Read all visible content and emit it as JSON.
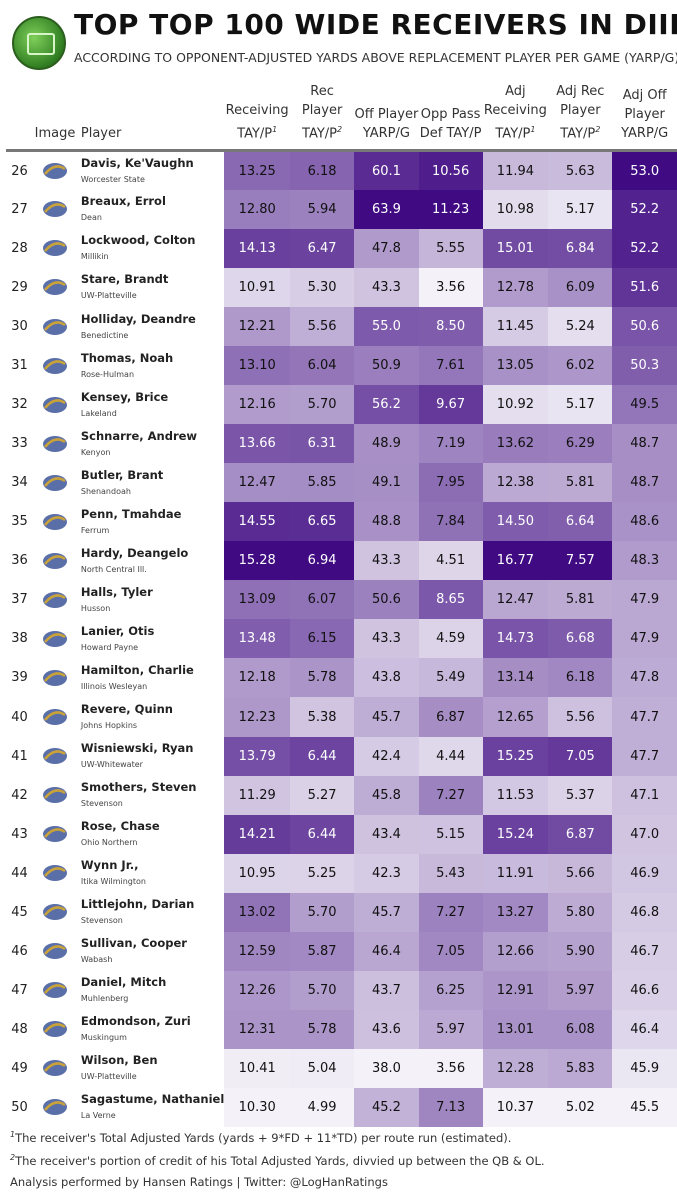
{
  "title": "TOP TOP 100 WIDE RECEIVERS IN DIII",
  "subtitle": "ACCORDING TO OPPONENT-ADJUSTED YARDS ABOVE REPLACEMENT PLAYER PER GAME (YARP/G)",
  "colors": {
    "low": "#f4f2f8",
    "high": "#3f0a82",
    "text_dark": "#111111",
    "text_light": "#ffffff",
    "header_rule": "#777777"
  },
  "headers": {
    "image": "Image",
    "player": "Player",
    "receiving_tay": [
      "Receiving",
      "TAY/P",
      "1"
    ],
    "rec_player_tay": [
      "Rec",
      "Player",
      "TAY/P",
      "2"
    ],
    "off_player_yarp": [
      "Off Player",
      "YARP/G"
    ],
    "opp_pass_def": [
      "Opp Pass",
      "Def TAY/P"
    ],
    "adj_receiving_tay": [
      "Adj",
      "Receiving",
      "TAY/P",
      "1"
    ],
    "adj_rec_player_tay": [
      "Adj Rec",
      "Player",
      "TAY/P",
      "2"
    ],
    "adj_off_player_yarp": [
      "Adj Off",
      "Player",
      "YARP/G"
    ]
  },
  "chart_data": {
    "type": "table",
    "columns": [
      "Rank",
      "Image",
      "Player",
      "School",
      "Receiving TAY/P",
      "Rec Player TAY/P",
      "Off Player YARP/G",
      "Opp Pass Def TAY/P",
      "Adj Receiving TAY/P",
      "Adj Rec Player TAY/P",
      "Adj Off Player YARP/G"
    ],
    "rows": [
      {
        "rank": "26",
        "player": "Davis, Ke'Vaughn",
        "school": "Worcester State",
        "icon": "lancer-mascot-icon",
        "values": [
          "13.25",
          "6.18",
          "60.1",
          "10.56",
          "11.94",
          "5.63",
          "53.0"
        ]
      },
      {
        "rank": "27",
        "player": "Breaux, Errol",
        "school": "Dean",
        "icon": "bulldog-mascot-icon",
        "values": [
          "12.80",
          "5.94",
          "63.9",
          "11.23",
          "10.98",
          "5.17",
          "52.2"
        ]
      },
      {
        "rank": "28",
        "player": "Lockwood, Colton",
        "school": "Millikin",
        "icon": "m-letter-logo-icon",
        "values": [
          "14.13",
          "6.47",
          "47.8",
          "5.55",
          "15.01",
          "6.84",
          "52.2"
        ]
      },
      {
        "rank": "29",
        "player": "Stare, Brandt",
        "school": "UW-Platteville",
        "icon": "pioneer-logo-icon",
        "values": [
          "10.91",
          "5.30",
          "43.3",
          "3.56",
          "12.78",
          "6.09",
          "51.6"
        ]
      },
      {
        "rank": "30",
        "player": "Holliday, Deandre",
        "school": "Benedictine",
        "icon": "eagle-logo-icon",
        "values": [
          "12.21",
          "5.56",
          "55.0",
          "8.50",
          "11.45",
          "5.24",
          "50.6"
        ]
      },
      {
        "rank": "31",
        "player": "Thomas, Noah",
        "school": "Rose-Hulman",
        "icon": "engineers-logo-icon",
        "values": [
          "13.10",
          "6.04",
          "50.9",
          "7.61",
          "13.05",
          "6.02",
          "50.3"
        ]
      },
      {
        "rank": "32",
        "player": "Kensey, Brice",
        "school": "Lakeland",
        "icon": "muskie-logo-icon",
        "values": [
          "12.16",
          "5.70",
          "56.2",
          "9.67",
          "10.92",
          "5.17",
          "49.5"
        ]
      },
      {
        "rank": "33",
        "player": "Schnarre, Andrew",
        "school": "Kenyon",
        "icon": "kenyon-shield-icon",
        "values": [
          "13.66",
          "6.31",
          "48.9",
          "7.19",
          "13.62",
          "6.29",
          "48.7"
        ]
      },
      {
        "rank": "34",
        "player": "Butler, Brant",
        "school": "Shenandoah",
        "icon": "hornet-logo-icon",
        "values": [
          "12.47",
          "5.85",
          "49.1",
          "7.95",
          "12.38",
          "5.81",
          "48.7"
        ]
      },
      {
        "rank": "35",
        "player": "Penn, Tmahdae",
        "school": "Ferrum",
        "icon": "panther-logo-icon",
        "values": [
          "14.55",
          "6.65",
          "48.8",
          "7.84",
          "14.50",
          "6.64",
          "48.6"
        ]
      },
      {
        "rank": "36",
        "player": "Hardy, Deangelo",
        "school": "North Central Ill.",
        "icon": "cardinal-logo-icon",
        "values": [
          "15.28",
          "6.94",
          "43.3",
          "4.51",
          "16.77",
          "7.57",
          "48.3"
        ]
      },
      {
        "rank": "37",
        "player": "Halls, Tyler",
        "school": "Husson",
        "icon": "h-letter-logo-icon",
        "values": [
          "13.09",
          "6.07",
          "50.6",
          "8.65",
          "12.47",
          "5.81",
          "47.9"
        ]
      },
      {
        "rank": "38",
        "player": "Lanier, Otis",
        "school": "Howard Payne",
        "icon": "hpu-logo-icon",
        "values": [
          "13.48",
          "6.15",
          "43.3",
          "4.59",
          "14.73",
          "6.68",
          "47.9"
        ]
      },
      {
        "rank": "39",
        "player": "Hamilton, Charlie",
        "school": "Illinois Wesleyan",
        "icon": "titan-helmet-icon",
        "values": [
          "12.18",
          "5.78",
          "43.8",
          "5.49",
          "13.14",
          "6.18",
          "47.8"
        ]
      },
      {
        "rank": "40",
        "player": "Revere, Quinn",
        "school": "Johns Hopkins",
        "icon": "blue-jay-logo-icon",
        "values": [
          "12.23",
          "5.38",
          "45.7",
          "6.87",
          "12.65",
          "5.56",
          "47.7"
        ]
      },
      {
        "rank": "41",
        "player": "Wisniewski, Ryan",
        "school": "UW-Whitewater",
        "icon": "warhawk-logo-icon",
        "values": [
          "13.79",
          "6.44",
          "42.4",
          "4.44",
          "15.25",
          "7.05",
          "47.7"
        ]
      },
      {
        "rank": "42",
        "player": "Smothers, Steven",
        "school": "Stevenson",
        "icon": "mustang-logo-icon",
        "values": [
          "11.29",
          "5.27",
          "45.8",
          "7.27",
          "11.53",
          "5.37",
          "47.1"
        ]
      },
      {
        "rank": "43",
        "player": "Rose, Chase",
        "school": "Ohio Northern",
        "icon": "onu-logo-icon",
        "values": [
          "14.21",
          "6.44",
          "43.4",
          "5.15",
          "15.24",
          "6.87",
          "47.0"
        ]
      },
      {
        "rank": "44",
        "player": "Wynn Jr.,",
        "school": "Itika Wilmington",
        "icon": "quakers-logo-icon",
        "values": [
          "10.95",
          "5.25",
          "42.3",
          "5.43",
          "11.91",
          "5.66",
          "46.9"
        ]
      },
      {
        "rank": "45",
        "player": "Littlejohn, Darian",
        "school": "Stevenson",
        "icon": "mustang-logo-icon",
        "values": [
          "13.02",
          "5.70",
          "45.7",
          "7.27",
          "13.27",
          "5.80",
          "46.8"
        ]
      },
      {
        "rank": "46",
        "player": "Sullivan, Cooper",
        "school": "Wabash",
        "icon": "little-giant-logo-icon",
        "values": [
          "12.59",
          "5.87",
          "46.4",
          "7.05",
          "12.66",
          "5.90",
          "46.7"
        ]
      },
      {
        "rank": "47",
        "player": "Daniel, Mitch",
        "school": "Muhlenberg",
        "icon": "script-m-logo-icon",
        "values": [
          "12.26",
          "5.70",
          "43.7",
          "6.25",
          "12.91",
          "5.97",
          "46.6"
        ]
      },
      {
        "rank": "48",
        "player": "Edmondson, Zuri",
        "school": "Muskingum",
        "icon": "block-m-logo-icon",
        "values": [
          "12.31",
          "5.78",
          "43.6",
          "5.97",
          "13.01",
          "6.08",
          "46.4"
        ]
      },
      {
        "rank": "49",
        "player": "Wilson, Ben",
        "school": "UW-Platteville",
        "icon": "pioneer-logo-icon",
        "values": [
          "10.41",
          "5.04",
          "38.0",
          "3.56",
          "12.28",
          "5.83",
          "45.9"
        ]
      },
      {
        "rank": "50",
        "player": "Sagastume, Nathaniel",
        "school": "La Verne",
        "icon": "leopard-logo-icon",
        "values": [
          "10.30",
          "4.99",
          "45.2",
          "7.13",
          "10.37",
          "5.02",
          "45.5"
        ]
      }
    ]
  },
  "footnotes": {
    "note1_mark": "1",
    "note1": "The receiver's Total Adjusted Yards (yards + 9*FD + 11*TD) per route run (estimated).",
    "note2_mark": "2",
    "note2": "The receiver's portion of credit of his Total Adjusted Yards, divvied up between the QB & OL."
  },
  "credit": "Analysis performed by Hansen Ratings | Twitter: @LogHanRatings"
}
